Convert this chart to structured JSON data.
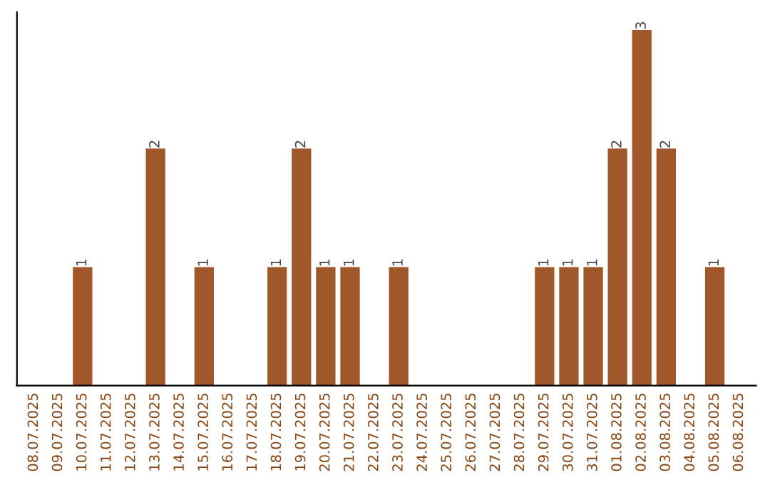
{
  "chart_data": {
    "type": "bar",
    "categories": [
      "08.07.2025",
      "09.07.2025",
      "10.07.2025",
      "11.07.2025",
      "12.07.2025",
      "13.07.2025",
      "14.07.2025",
      "15.07.2025",
      "16.07.2025",
      "17.07.2025",
      "18.07.2025",
      "19.07.2025",
      "20.07.2025",
      "21.07.2025",
      "22.07.2025",
      "23.07.2025",
      "24.07.2025",
      "25.07.2025",
      "26.07.2025",
      "27.07.2025",
      "28.07.2025",
      "29.07.2025",
      "30.07.2025",
      "31.07.2025",
      "01.08.2025",
      "02.08.2025",
      "03.08.2025",
      "04.08.2025",
      "05.08.2025",
      "06.08.2025"
    ],
    "values": [
      0,
      0,
      1,
      0,
      0,
      2,
      0,
      1,
      0,
      0,
      1,
      2,
      1,
      1,
      0,
      1,
      0,
      0,
      0,
      0,
      0,
      1,
      1,
      1,
      2,
      3,
      2,
      0,
      1,
      0
    ],
    "value_labels": [
      null,
      null,
      "1",
      null,
      null,
      "2",
      null,
      "1",
      null,
      null,
      "1",
      "2",
      "1",
      "1",
      null,
      "1",
      null,
      null,
      null,
      null,
      null,
      "1",
      "1",
      "1",
      "2",
      "3",
      "2",
      null,
      "1",
      null
    ],
    "color": "#a0572a",
    "ylim": [
      0,
      3.15
    ],
    "tick_labels": "x",
    "grid": false,
    "legend": false
  }
}
